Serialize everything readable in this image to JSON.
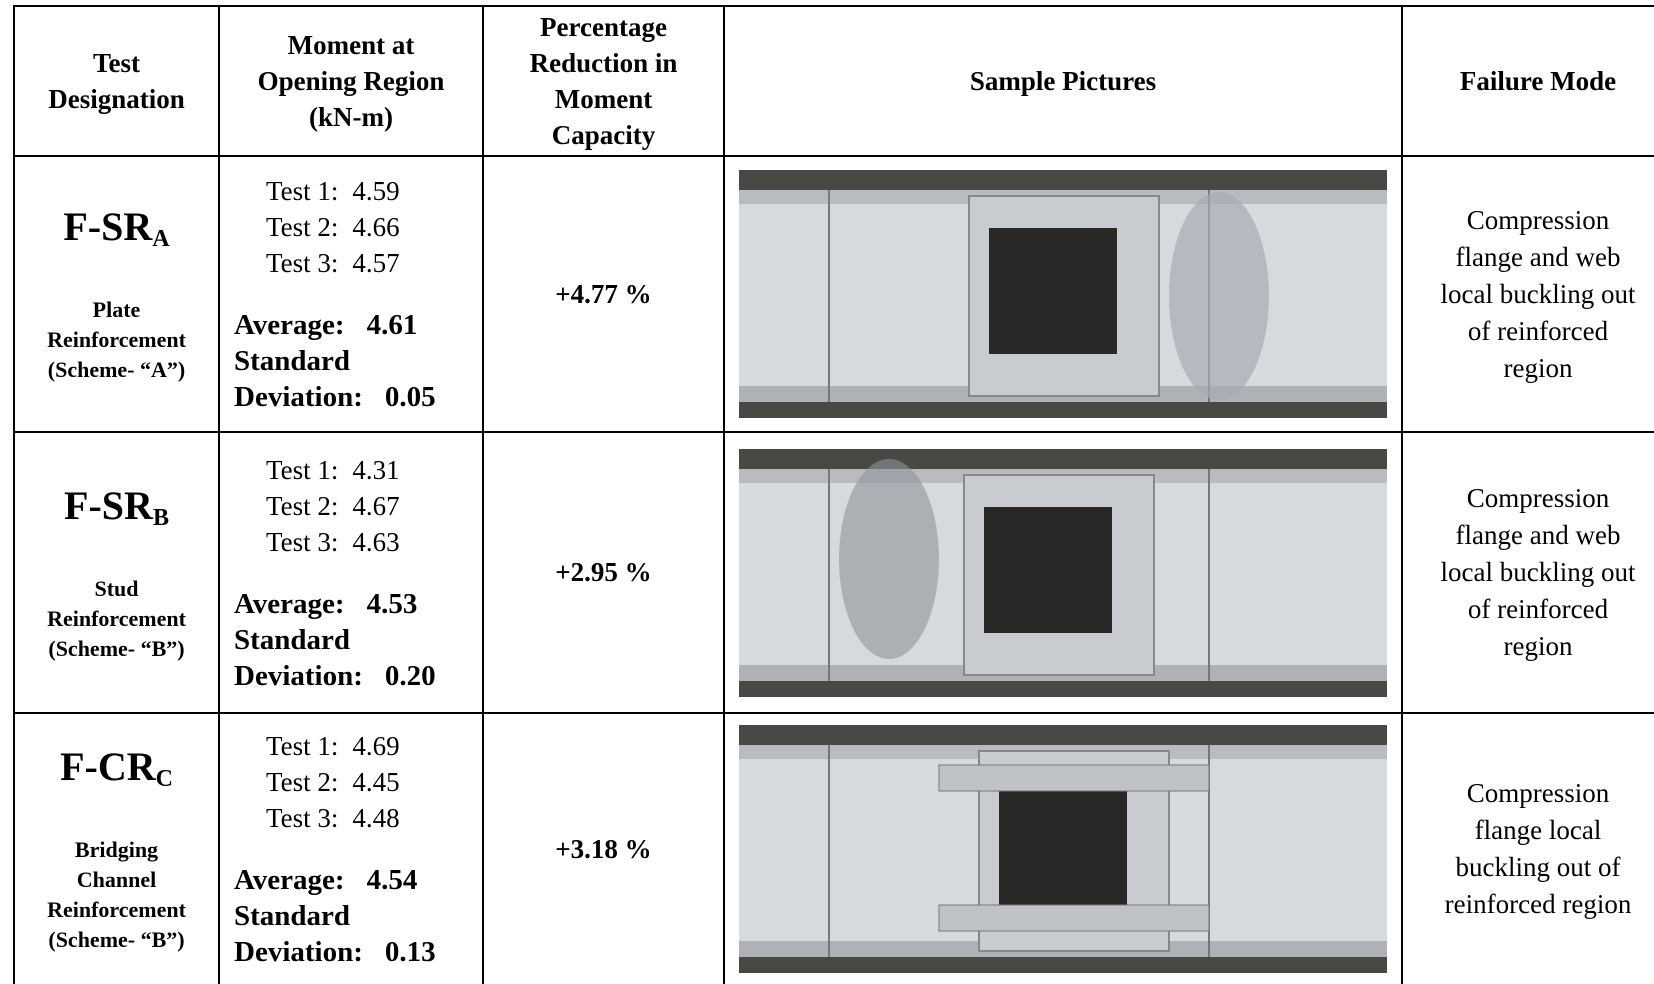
{
  "header": {
    "columns": [
      [
        "Test",
        "Designation"
      ],
      [
        "Moment at",
        "Opening Region",
        "(kN-m)"
      ],
      [
        "Percentage",
        "Reduction in",
        "Moment",
        "Capacity"
      ],
      [
        "Sample Pictures"
      ],
      [
        "Failure Mode"
      ]
    ]
  },
  "rows": [
    {
      "designation": {
        "base": "F-SR",
        "subscript": "A"
      },
      "scheme": [
        "Plate",
        "Reinforcement",
        "(Scheme- “A”)"
      ],
      "tests": [
        {
          "label": "Test 1:",
          "value": "4.59"
        },
        {
          "label": "Test 2:",
          "value": "4.66"
        },
        {
          "label": "Test 3:",
          "value": "4.57"
        }
      ],
      "average": {
        "label": "Average:",
        "value": "4.61"
      },
      "std_dev": {
        "label": [
          "Standard",
          "Deviation:"
        ],
        "value": "0.05"
      },
      "reduction": "+4.77 %",
      "failure_mode": [
        "Compression",
        "flange and web",
        "local buckling out",
        "of reinforced",
        "region"
      ]
    },
    {
      "designation": {
        "base": "F-SR",
        "subscript": "B"
      },
      "scheme": [
        "Stud",
        "Reinforcement",
        "(Scheme- “B”)"
      ],
      "tests": [
        {
          "label": "Test 1:",
          "value": "4.31"
        },
        {
          "label": "Test 2:",
          "value": "4.67"
        },
        {
          "label": "Test 3:",
          "value": "4.63"
        }
      ],
      "average": {
        "label": "Average:",
        "value": "4.53"
      },
      "std_dev": {
        "label": [
          "Standard",
          "Deviation:"
        ],
        "value": "0.20"
      },
      "reduction": "+2.95 %",
      "failure_mode": [
        "Compression",
        "flange and web",
        "local buckling out",
        "of reinforced",
        "region"
      ]
    },
    {
      "designation": {
        "base": "F-CR",
        "subscript": "C"
      },
      "scheme": [
        "Bridging",
        "Channel",
        "Reinforcement",
        "(Scheme- “B”)"
      ],
      "tests": [
        {
          "label": "Test 1:",
          "value": "4.69"
        },
        {
          "label": "Test 2:",
          "value": "4.45"
        },
        {
          "label": "Test 3:",
          "value": "4.48"
        }
      ],
      "average": {
        "label": "Average:",
        "value": "4.54"
      },
      "std_dev": {
        "label": [
          "Standard",
          "Deviation:"
        ],
        "value": "0.13"
      },
      "reduction": "+3.18 %",
      "failure_mode": [
        "Compression",
        "flange local",
        "buckling out of",
        "reinforced region"
      ]
    }
  ]
}
